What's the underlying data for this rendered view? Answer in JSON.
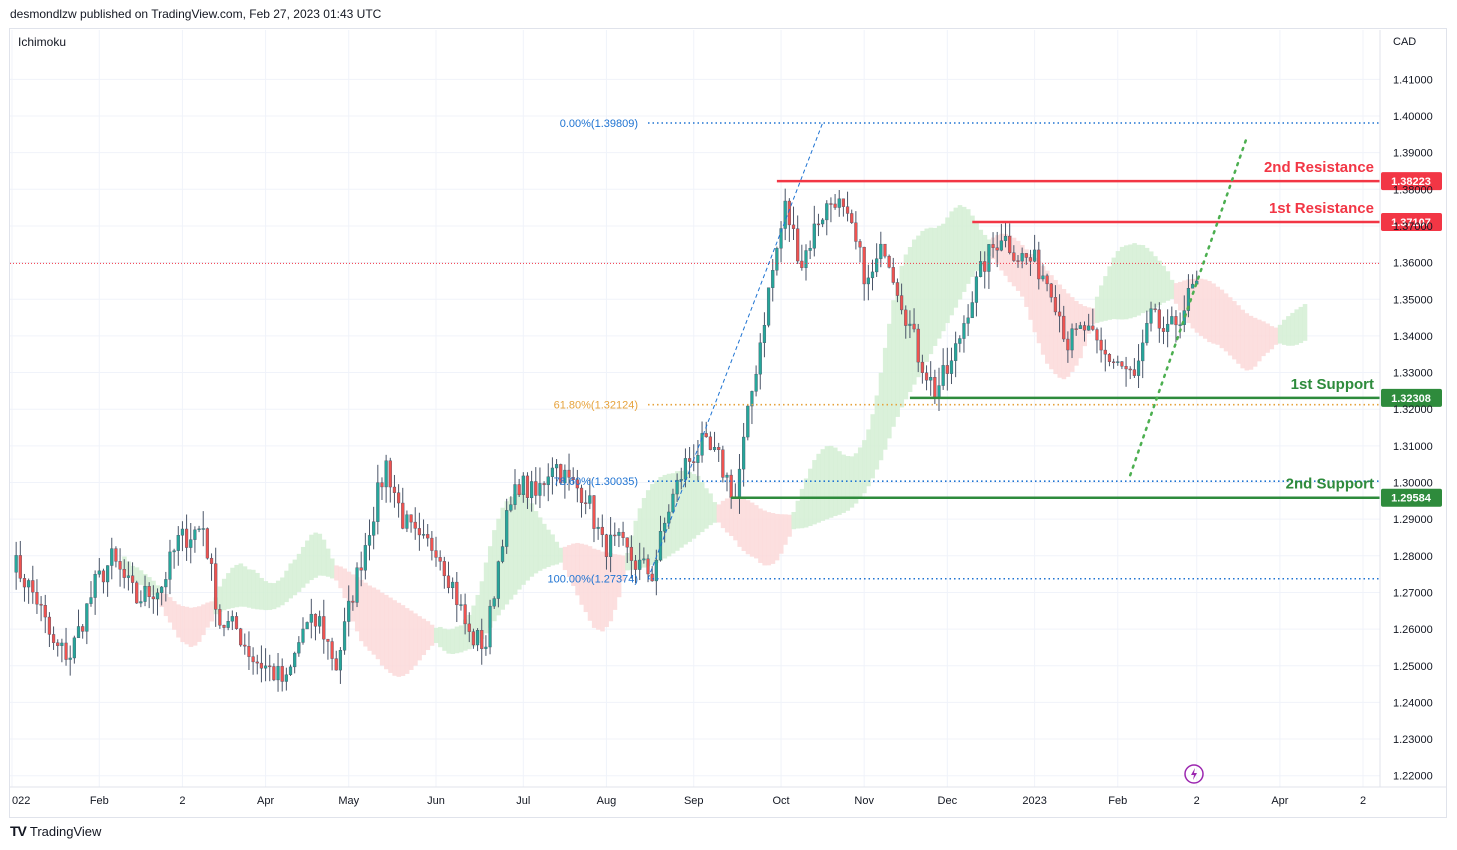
{
  "header": {
    "publisher_line": "desmondlzw published on TradingView.com, Feb 27, 2023 01:43 UTC",
    "indicator": "Ichimoku",
    "currency": "CAD"
  },
  "footer": {
    "brand": "TradingView",
    "logo_mark": "TV"
  },
  "colors": {
    "up": "#26a69a",
    "down": "#ef5350",
    "body": "#4a5568",
    "resistance": "#f23645",
    "support": "#2e8b3c",
    "fib": "#1e73d2",
    "fib_618": "#e6a23c",
    "cloud_up": "#d4eed4",
    "cloud_down": "#fbd9d9",
    "trend": "#4caf50",
    "price_line": "#f23645"
  },
  "chart_data": {
    "type": "candlestick",
    "ylabel": "CAD",
    "ylim": [
      1.215,
      1.425
    ],
    "y_ticks": [
      "1.41000",
      "1.40000",
      "1.39000",
      "1.38000",
      "1.37000",
      "1.36000",
      "1.35000",
      "1.34000",
      "1.33000",
      "1.32000",
      "1.31000",
      "1.30000",
      "1.29000",
      "1.28000",
      "1.27000",
      "1.26000",
      "1.25000",
      "1.24000",
      "1.23000",
      "1.22000"
    ],
    "x_ticks": [
      {
        "label": "022",
        "bar": 0
      },
      {
        "label": "Feb",
        "bar": 21
      },
      {
        "label": "2",
        "bar": 41
      },
      {
        "label": "Apr",
        "bar": 61
      },
      {
        "label": "May",
        "bar": 81
      },
      {
        "label": "Jun",
        "bar": 102
      },
      {
        "label": "Jul",
        "bar": 123
      },
      {
        "label": "Aug",
        "bar": 143
      },
      {
        "label": "Sep",
        "bar": 164
      },
      {
        "label": "Oct",
        "bar": 185
      },
      {
        "label": "Nov",
        "bar": 205
      },
      {
        "label": "Dec",
        "bar": 225
      },
      {
        "label": "2023",
        "bar": 246
      },
      {
        "label": "Feb",
        "bar": 266
      },
      {
        "label": "2",
        "bar": 285
      },
      {
        "label": "Apr",
        "bar": 305
      },
      {
        "label": "2",
        "bar": 325
      }
    ],
    "bars_total": 330,
    "close_anchors": [
      [
        0,
        1.279
      ],
      [
        6,
        1.268
      ],
      [
        10,
        1.255
      ],
      [
        14,
        1.253
      ],
      [
        20,
        1.272
      ],
      [
        24,
        1.279
      ],
      [
        30,
        1.268
      ],
      [
        36,
        1.272
      ],
      [
        40,
        1.284
      ],
      [
        46,
        1.288
      ],
      [
        50,
        1.262
      ],
      [
        54,
        1.26
      ],
      [
        58,
        1.252
      ],
      [
        62,
        1.249
      ],
      [
        66,
        1.245
      ],
      [
        70,
        1.26
      ],
      [
        74,
        1.262
      ],
      [
        78,
        1.25
      ],
      [
        82,
        1.27
      ],
      [
        86,
        1.288
      ],
      [
        90,
        1.305
      ],
      [
        94,
        1.29
      ],
      [
        98,
        1.283
      ],
      [
        102,
        1.283
      ],
      [
        106,
        1.272
      ],
      [
        110,
        1.258
      ],
      [
        114,
        1.256
      ],
      [
        118,
        1.286
      ],
      [
        122,
        1.3
      ],
      [
        126,
        1.296
      ],
      [
        130,
        1.306
      ],
      [
        134,
        1.3
      ],
      [
        138,
        1.297
      ],
      [
        142,
        1.283
      ],
      [
        146,
        1.283
      ],
      [
        150,
        1.278
      ],
      [
        154,
        1.275
      ],
      [
        158,
        1.293
      ],
      [
        162,
        1.305
      ],
      [
        166,
        1.31
      ],
      [
        170,
        1.306
      ],
      [
        174,
        1.296
      ],
      [
        178,
        1.325
      ],
      [
        182,
        1.352
      ],
      [
        186,
        1.375
      ],
      [
        190,
        1.36
      ],
      [
        194,
        1.372
      ],
      [
        198,
        1.378
      ],
      [
        202,
        1.368
      ],
      [
        206,
        1.354
      ],
      [
        210,
        1.365
      ],
      [
        214,
        1.35
      ],
      [
        218,
        1.335
      ],
      [
        222,
        1.325
      ],
      [
        226,
        1.332
      ],
      [
        230,
        1.348
      ],
      [
        234,
        1.36
      ],
      [
        238,
        1.368
      ],
      [
        242,
        1.362
      ],
      [
        246,
        1.36
      ],
      [
        250,
        1.354
      ],
      [
        254,
        1.338
      ],
      [
        258,
        1.342
      ],
      [
        262,
        1.335
      ],
      [
        266,
        1.333
      ],
      [
        270,
        1.328
      ],
      [
        274,
        1.345
      ],
      [
        278,
        1.34
      ],
      [
        282,
        1.348
      ],
      [
        285,
        1.355
      ]
    ],
    "last_bar": 285,
    "current_price": 1.3598,
    "fibonacci": [
      {
        "label": "0.00%(1.39809)",
        "value": 1.39809
      },
      {
        "label": "61.80%(1.32124)",
        "value": 1.32124
      },
      {
        "label": "78.60%(1.30035)",
        "value": 1.30035
      },
      {
        "label": "100.00%(1.27374)",
        "value": 1.27374
      }
    ],
    "fib_swing": {
      "from_bar": 153,
      "from_value": 1.27374,
      "to_bar": 195,
      "to_value": 1.39809
    },
    "levels": [
      {
        "name": "2nd Resistance",
        "value": 1.38223,
        "label": "1.38223",
        "kind": "resistance",
        "from_bar": 184
      },
      {
        "name": "1st Resistance",
        "value": 1.37107,
        "label": "1.37107",
        "kind": "resistance",
        "from_bar": 231
      },
      {
        "name": "1st Support",
        "value": 1.32308,
        "label": "1.32308",
        "kind": "support",
        "from_bar": 216
      },
      {
        "name": "2nd Support",
        "value": 1.29584,
        "label": "1.29584",
        "kind": "support",
        "from_bar": 173
      }
    ],
    "trendline": {
      "from_bar": 269,
      "from_value": 1.302,
      "to_bar": 297,
      "to_value": 1.394
    },
    "grid": true
  }
}
